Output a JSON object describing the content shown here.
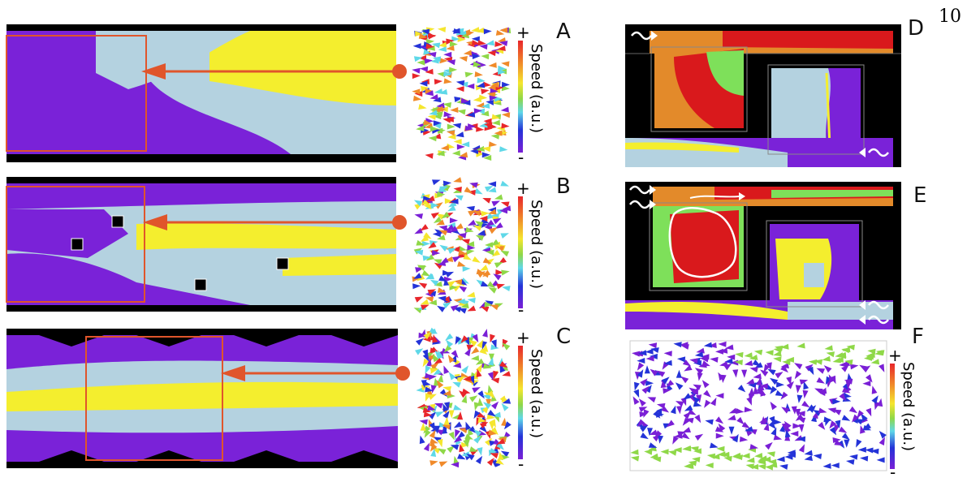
{
  "page_number": "10",
  "panels": {
    "A": "A",
    "B": "B",
    "C": "C",
    "D": "D",
    "E": "E",
    "F": "F"
  },
  "colorbar": {
    "plus": "+",
    "minus": "-",
    "label": "Speed (a.u.)",
    "colors": [
      "#e8262b",
      "#f08a2a",
      "#f5e62e",
      "#8fd848",
      "#5fd8e8",
      "#2433d8",
      "#7a1fd6"
    ]
  },
  "phase_colors": {
    "purple": "#7a22d8",
    "lightblue": "#b4d2e0",
    "yellow": "#f4ee2e",
    "orange": "#e38a2a",
    "red": "#d9191c",
    "green": "#7ee05a",
    "arrow": "#e0552b"
  },
  "icons": {
    "arrow": "orange-arrow-icon",
    "wave": "wave-inlet-icon"
  }
}
